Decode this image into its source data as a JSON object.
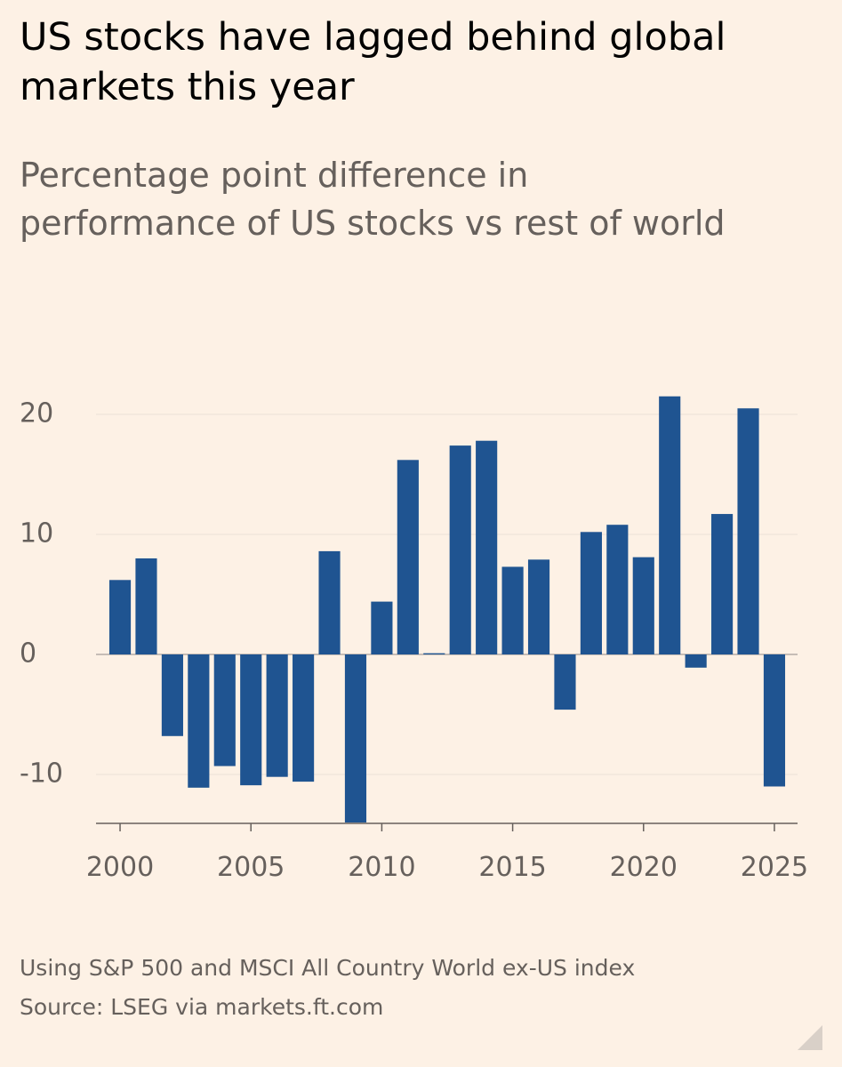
{
  "chart_data": {
    "type": "bar",
    "title": "US stocks have lagged behind global markets this year",
    "subtitle": "Percentage point difference in performance of US stocks vs rest of world",
    "x": [
      2000,
      2001,
      2002,
      2003,
      2004,
      2005,
      2006,
      2007,
      2008,
      2009,
      2010,
      2011,
      2012,
      2013,
      2014,
      2015,
      2016,
      2017,
      2018,
      2019,
      2020,
      2021,
      2022,
      2023,
      2024,
      2025
    ],
    "values": [
      6.2,
      8.0,
      -6.8,
      -11.1,
      -9.3,
      -10.9,
      -10.2,
      -10.6,
      8.6,
      -14,
      4.4,
      16.2,
      0.1,
      17.4,
      17.8,
      7.3,
      7.9,
      -4.6,
      10.2,
      10.8,
      8.1,
      21.5,
      -1.1,
      11.7,
      20.5,
      -11.0
    ],
    "color": "#1f5491",
    "xlim": [
      1999,
      2026
    ],
    "xticks": [
      2000,
      2005,
      2010,
      2015,
      2020,
      2025
    ],
    "ylim": [
      -14,
      22
    ],
    "yticks": [
      -10,
      0,
      10,
      20
    ],
    "grid": true,
    "notes": [
      "Using S&P 500 and MSCI All Country World ex-US index",
      "Source: LSEG via markets.ft.com"
    ]
  }
}
